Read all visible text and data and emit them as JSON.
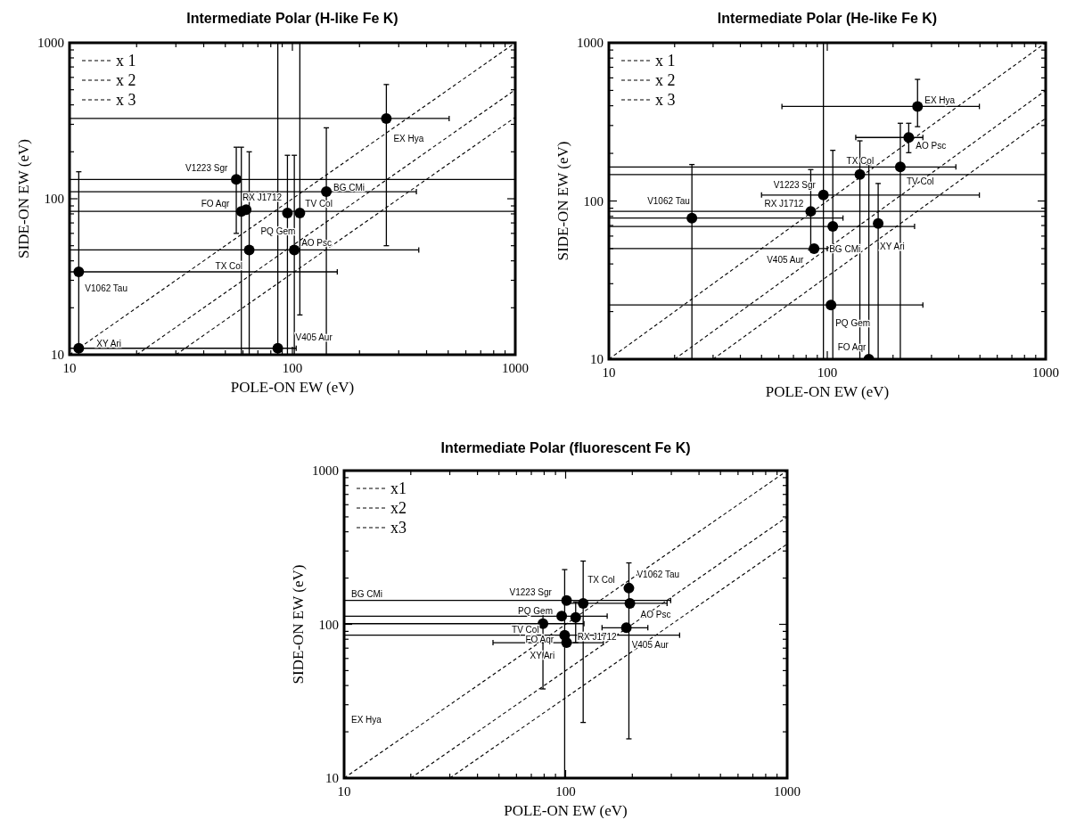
{
  "chart_data": [
    {
      "type": "scatter",
      "legend": "top left",
      "title": "Intermediate Polar (H-like Fe K)",
      "xlabel": "POLE-ON EW (eV)",
      "ylabel": "SIDE-ON EW (eV)",
      "log": "xy",
      "marker": "circle",
      "xlim": [
        10,
        1000
      ],
      "ylim": [
        10,
        1000
      ],
      "xticks": [
        10,
        {
          "value": 20,
          "label": null
        },
        {
          "value": 30,
          "label": null
        },
        {
          "value": 40,
          "label": null
        },
        {
          "value": 50,
          "label": null
        },
        {
          "value": 60,
          "label": null
        },
        {
          "value": 70,
          "label": null
        },
        {
          "value": 80,
          "label": null
        },
        {
          "value": 90,
          "label": null
        },
        100,
        {
          "value": 200,
          "label": null
        },
        {
          "value": 300,
          "label": null
        },
        {
          "value": 400,
          "label": null
        },
        {
          "value": 500,
          "label": null
        },
        {
          "value": 600,
          "label": null
        },
        {
          "value": 700,
          "label": null
        },
        {
          "value": 800,
          "label": null
        },
        {
          "value": 900,
          "label": null
        },
        1000
      ],
      "yticks": [
        10,
        {
          "value": 20,
          "label": null
        },
        {
          "value": 30,
          "label": null
        },
        {
          "value": 40,
          "label": null
        },
        {
          "value": 50,
          "label": null
        },
        {
          "value": 60,
          "label": null
        },
        {
          "value": 70,
          "label": null
        },
        {
          "value": 80,
          "label": null
        },
        {
          "value": 90,
          "label": null
        },
        100,
        {
          "value": 200,
          "label": null
        },
        {
          "value": 300,
          "label": null
        },
        {
          "value": 400,
          "label": null
        },
        {
          "value": 500,
          "label": null
        },
        {
          "value": 600,
          "label": null
        },
        {
          "value": 700,
          "label": null
        },
        {
          "value": 800,
          "label": null
        },
        {
          "value": 900,
          "label": null
        },
        1000
      ],
      "series": [
        {
          "type": "scatter",
          "color": "#000000",
          "x": [
            264,
            56,
            142,
            59,
            62,
            95,
            108,
            64,
            102,
            11,
            11,
            86
          ],
          "values": [
            327,
            133,
            111,
            83,
            85,
            81,
            81,
            47,
            47,
            34,
            11,
            11
          ],
          "xerrors": [
            [
              10,
              505
            ],
            [
              10,
              1000
            ],
            [
              10,
              360
            ],
            [
              10,
              1000
            ],
            null,
            null,
            null,
            [
              10,
              369
            ],
            null,
            [
              10,
              159
            ],
            [
              10,
              104
            ],
            null
          ],
          "errors": [
            [
              50,
              540
            ],
            [
              60,
              214
            ],
            [
              10,
              285
            ],
            [
              10,
              214
            ],
            null,
            [
              10,
              190
            ],
            [
              18,
              1000
            ],
            [
              10,
              200
            ],
            [
              10,
              190
            ],
            [
              10,
              149
            ],
            null,
            [
              10,
              1000
            ]
          ]
        },
        {
          "type": "line",
          "name": "x 1",
          "color": "#000000",
          "line_style": "dashed",
          "marker": "none",
          "x": [
            10,
            1000
          ],
          "values": [
            10,
            1000
          ]
        },
        {
          "type": "line",
          "name": "x 2",
          "color": "#000000",
          "line_style": "dashed",
          "marker": "none",
          "x": [
            20,
            1000
          ],
          "values": [
            10,
            500
          ]
        },
        {
          "type": "line",
          "name": "x 3",
          "color": "#000000",
          "line_style": "dashed",
          "marker": "none",
          "x": [
            30,
            1000
          ],
          "values": [
            10,
            333
          ]
        }
      ],
      "annotations": [
        {
          "text": "EX Hya",
          "x": 264,
          "y": 327
        },
        {
          "text": "V1223 Sgr",
          "x": 56,
          "y": 133
        },
        {
          "text": "BG CMi",
          "x": 142,
          "y": 111
        },
        {
          "text": "FO Aqr",
          "x": 59,
          "y": 83
        },
        {
          "text": "RX J1712",
          "x": 62,
          "y": 85
        },
        {
          "text": "PQ Gem",
          "x": 95,
          "y": 81
        },
        {
          "text": "TV Col",
          "x": 108,
          "y": 81
        },
        {
          "text": "TX Col",
          "x": 64,
          "y": 47
        },
        {
          "text": "AO Psc",
          "x": 102,
          "y": 47
        },
        {
          "text": "V1062 Tau",
          "x": 11,
          "y": 34
        },
        {
          "text": "XY Ari",
          "x": 11,
          "y": 11
        },
        {
          "text": "V405 Aur",
          "x": 86,
          "y": 11
        }
      ]
    },
    {
      "type": "scatter",
      "legend": "top left",
      "title": "Intermediate Polar (He-like Fe K)",
      "xlabel": "POLE-ON EW (eV)",
      "ylabel": "SIDE-ON EW (eV)",
      "log": "xy",
      "marker": "circle",
      "xlim": [
        10,
        1000
      ],
      "ylim": [
        10,
        1000
      ],
      "xticks": [
        10,
        {
          "value": 20,
          "label": null
        },
        {
          "value": 30,
          "label": null
        },
        {
          "value": 40,
          "label": null
        },
        {
          "value": 50,
          "label": null
        },
        {
          "value": 60,
          "label": null
        },
        {
          "value": 70,
          "label": null
        },
        {
          "value": 80,
          "label": null
        },
        {
          "value": 90,
          "label": null
        },
        100,
        {
          "value": 200,
          "label": null
        },
        {
          "value": 300,
          "label": null
        },
        {
          "value": 400,
          "label": null
        },
        {
          "value": 500,
          "label": null
        },
        {
          "value": 600,
          "label": null
        },
        {
          "value": 700,
          "label": null
        },
        {
          "value": 800,
          "label": null
        },
        {
          "value": 900,
          "label": null
        },
        1000
      ],
      "yticks": [
        10,
        {
          "value": 20,
          "label": null
        },
        {
          "value": 30,
          "label": null
        },
        {
          "value": 40,
          "label": null
        },
        {
          "value": 50,
          "label": null
        },
        {
          "value": 60,
          "label": null
        },
        {
          "value": 70,
          "label": null
        },
        {
          "value": 80,
          "label": null
        },
        {
          "value": 90,
          "label": null
        },
        100,
        {
          "value": 200,
          "label": null
        },
        {
          "value": 300,
          "label": null
        },
        {
          "value": 400,
          "label": null
        },
        {
          "value": 500,
          "label": null
        },
        {
          "value": 600,
          "label": null
        },
        {
          "value": 700,
          "label": null
        },
        {
          "value": 800,
          "label": null
        },
        {
          "value": 900,
          "label": null
        },
        1000
      ],
      "series": [
        {
          "type": "scatter",
          "color": "#000000",
          "x": [
            259,
            236,
            141,
            216,
            96,
            84,
            24,
            106,
            171,
            87,
            104,
            155
          ],
          "values": [
            396,
            252,
            147,
            164,
            109,
            86,
            78,
            69,
            72,
            50,
            22,
            10
          ],
          "xerrors": [
            [
              62,
              497
            ],
            [
              135,
              274
            ],
            [
              10,
              1000
            ],
            [
              10,
              388
            ],
            [
              50,
              497
            ],
            [
              10,
              1000
            ],
            [
              10,
              118
            ],
            [
              10,
              251
            ],
            null,
            [
              10,
              100
            ],
            [
              10,
              274
            ],
            null
          ],
          "errors": [
            [
              295,
              587
            ],
            [
              202,
              310
            ],
            [
              10,
              240
            ],
            [
              10,
              310
            ],
            [
              10,
              1000
            ],
            [
              49,
              158
            ],
            [
              10,
              170
            ],
            [
              10,
              209
            ],
            [
              10,
              129
            ],
            null,
            null,
            [
              10,
              170
            ]
          ]
        },
        {
          "type": "line",
          "name": "x 1",
          "color": "#000000",
          "line_style": "dashed",
          "marker": "none",
          "x": [
            10,
            1000
          ],
          "values": [
            10,
            1000
          ]
        },
        {
          "type": "line",
          "name": "x 2",
          "color": "#000000",
          "line_style": "dashed",
          "marker": "none",
          "x": [
            20,
            1000
          ],
          "values": [
            10,
            500
          ]
        },
        {
          "type": "line",
          "name": "x 3",
          "color": "#000000",
          "line_style": "dashed",
          "marker": "none",
          "x": [
            30,
            1000
          ],
          "values": [
            10,
            333
          ]
        }
      ],
      "annotations": [
        {
          "text": "EX Hya",
          "x": 259,
          "y": 396
        },
        {
          "text": "AO Psc",
          "x": 236,
          "y": 252
        },
        {
          "text": "TX Col",
          "x": 141,
          "y": 147
        },
        {
          "text": "TV Col",
          "x": 216,
          "y": 164
        },
        {
          "text": "V1223 Sgr",
          "x": 96,
          "y": 109
        },
        {
          "text": "RX J1712",
          "x": 84,
          "y": 86
        },
        {
          "text": "V1062 Tau",
          "x": 24,
          "y": 78
        },
        {
          "text": "BG CMi",
          "x": 106,
          "y": 69
        },
        {
          "text": "XY Ari",
          "x": 171,
          "y": 72
        },
        {
          "text": "V405 Aur",
          "x": 87,
          "y": 50
        },
        {
          "text": "PQ Gem",
          "x": 104,
          "y": 22
        },
        {
          "text": "FO Aqr",
          "x": 155,
          "y": 10
        }
      ]
    },
    {
      "type": "scatter",
      "legend": "top left",
      "title": "Intermediate Polar (fluorescent Fe K)",
      "xlabel": "POLE-ON EW (eV)",
      "ylabel": "SIDE-ON EW (eV)",
      "log": "xy",
      "marker": "circle",
      "xlim": [
        10,
        1000
      ],
      "ylim": [
        10,
        1000
      ],
      "xticks": [
        10,
        {
          "value": 20,
          "label": null
        },
        {
          "value": 30,
          "label": null
        },
        {
          "value": 40,
          "label": null
        },
        {
          "value": 50,
          "label": null
        },
        {
          "value": 60,
          "label": null
        },
        {
          "value": 70,
          "label": null
        },
        {
          "value": 80,
          "label": null
        },
        {
          "value": 90,
          "label": null
        },
        100,
        {
          "value": 200,
          "label": null
        },
        {
          "value": 300,
          "label": null
        },
        {
          "value": 400,
          "label": null
        },
        {
          "value": 500,
          "label": null
        },
        {
          "value": 600,
          "label": null
        },
        {
          "value": 700,
          "label": null
        },
        {
          "value": 800,
          "label": null
        },
        {
          "value": 900,
          "label": null
        },
        1000
      ],
      "yticks": [
        10,
        {
          "value": 20,
          "label": null
        },
        {
          "value": 30,
          "label": null
        },
        {
          "value": 40,
          "label": null
        },
        {
          "value": 50,
          "label": null
        },
        {
          "value": 60,
          "label": null
        },
        {
          "value": 70,
          "label": null
        },
        {
          "value": 80,
          "label": null
        },
        {
          "value": 90,
          "label": null
        },
        100,
        {
          "value": 200,
          "label": null
        },
        {
          "value": 300,
          "label": null
        },
        {
          "value": 400,
          "label": null
        },
        {
          "value": 500,
          "label": null
        },
        {
          "value": 600,
          "label": null
        },
        {
          "value": 700,
          "label": null
        },
        {
          "value": 800,
          "label": null
        },
        {
          "value": 900,
          "label": null
        },
        1000
      ],
      "series": [
        {
          "type": "scatter",
          "color": "#000000",
          "x": [
            193,
            195,
            188,
            120,
            101,
            96,
            79,
            111,
            99,
            101
          ],
          "values": [
            172,
            137,
            95,
            137,
            143,
            113,
            101,
            111,
            85,
            76
          ],
          "xerrors": [
            null,
            null,
            [
              146,
              235
            ],
            [
              99,
              287
            ],
            [
              10,
              298
            ],
            [
              10,
              154
            ],
            [
              10,
              121
            ],
            null,
            [
              10,
              327
            ],
            [
              47,
              148
            ]
          ],
          "errors": [
            [
              18,
              251
            ],
            null,
            null,
            [
              23,
              258
            ],
            null,
            null,
            [
              38,
              120
            ],
            [
              76,
              140
            ],
            [
              10,
              227
            ],
            null
          ]
        },
        {
          "type": "line",
          "name": "x1",
          "color": "#000000",
          "line_style": "dashed",
          "marker": "none",
          "x": [
            10,
            1000
          ],
          "values": [
            10,
            1000
          ]
        },
        {
          "type": "line",
          "name": "x2",
          "color": "#000000",
          "line_style": "dashed",
          "marker": "none",
          "x": [
            20,
            1000
          ],
          "values": [
            10,
            500
          ]
        },
        {
          "type": "line",
          "name": "x3",
          "color": "#000000",
          "line_style": "dashed",
          "marker": "none",
          "x": [
            30,
            1000
          ],
          "values": [
            10,
            333
          ]
        }
      ],
      "annotations": [
        {
          "text": "V1062 Tau",
          "x": 193,
          "y": 172
        },
        {
          "text": "TX Col",
          "x": 120,
          "y": 137
        },
        {
          "text": "V1223 Sgr",
          "x": 101,
          "y": 143
        },
        "BG CMi",
        {
          "text": "PQ Gem",
          "x": 96,
          "y": 113
        },
        {
          "text": "AO Psc",
          "x": 195,
          "y": 137
        },
        {
          "text": "TV Col",
          "x": 79,
          "y": 101
        },
        {
          "text": "RX J1712",
          "x": 111,
          "y": 111
        },
        {
          "text": "FO Aqr",
          "x": 99,
          "y": 85
        },
        {
          "text": "V405 Aur",
          "x": 188,
          "y": 95
        },
        {
          "text": "XY Ari",
          "x": 101,
          "y": 76
        },
        "EX Hya"
      ]
    }
  ]
}
